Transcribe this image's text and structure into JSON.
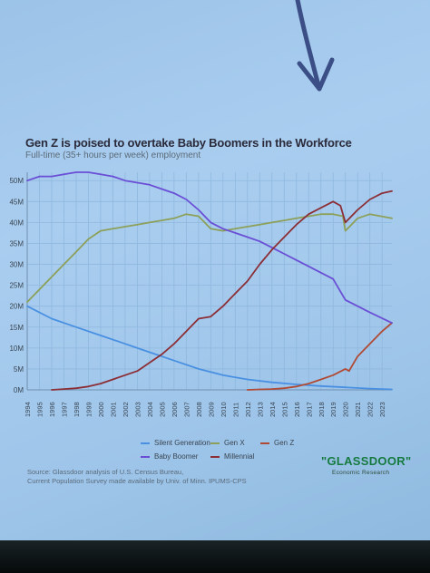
{
  "header": {
    "title": "Gen Z is poised to overtake Baby Boomers in the Workforce",
    "subtitle": "Full-time (35+ hours per week) employment"
  },
  "footer": {
    "source_line1": "Source: Glassdoor analysis of U.S. Census Bureau,",
    "source_line2": "Current Population Survey made available by Univ. of Minn. IPUMS-CPS",
    "brand": "\"GLASSDOOR\"",
    "brand_sub": "Economic Research"
  },
  "colors": {
    "silent": "#4a90e2",
    "gen_x": "#8ca05a",
    "gen_z": "#b04a34",
    "boomer": "#6a4fd6",
    "millennial": "#8c2e36",
    "grid": "#8fb8de",
    "axis_text": "#3a4552"
  },
  "chart_data": {
    "type": "line",
    "title": "Gen Z is poised to overtake Baby Boomers in the Workforce",
    "subtitle": "Full-time (35+ hours per week) employment",
    "xlabel": "",
    "ylabel": "",
    "ylim": [
      0,
      52
    ],
    "y_ticks": [
      "0M",
      "5M",
      "10M",
      "15M",
      "20M",
      "25M",
      "30M",
      "35M",
      "40M",
      "45M",
      "50M"
    ],
    "x_ticks": [
      "1994",
      "1995",
      "1996",
      "1997",
      "1998",
      "1999",
      "2000",
      "2001",
      "2002",
      "2003",
      "2004",
      "2005",
      "2006",
      "2007",
      "2008",
      "2009",
      "2010",
      "2011",
      "2012",
      "2013",
      "2014",
      "2015",
      "2016",
      "2017",
      "2018",
      "2019",
      "2020",
      "2021",
      "2022",
      "2023"
    ],
    "grid": true,
    "legend": [
      "Silent Generation",
      "Gen X",
      "Gen Z",
      "Baby Boomer",
      "Millennial"
    ],
    "series": [
      {
        "name": "Silent Generation",
        "color_key": "silent",
        "x": [
          1994,
          1996,
          1998,
          2000,
          2002,
          2004,
          2006,
          2008,
          2010,
          2012,
          2014,
          2016,
          2018,
          2020,
          2022,
          2023.8
        ],
        "values": [
          20,
          17,
          15,
          13,
          11,
          9,
          7,
          5,
          3.5,
          2.5,
          1.8,
          1.3,
          0.9,
          0.6,
          0.3,
          0.1
        ]
      },
      {
        "name": "Gen X",
        "color_key": "gen_x",
        "x": [
          1994,
          1995,
          1996,
          1997,
          1998,
          1999,
          2000,
          2001,
          2002,
          2003,
          2004,
          2005,
          2006,
          2007,
          2008,
          2009,
          2010,
          2011,
          2012,
          2013,
          2014,
          2015,
          2016,
          2017,
          2018,
          2019,
          2019.8,
          2020,
          2020.5,
          2021,
          2022,
          2023.8
        ],
        "values": [
          21,
          24,
          27,
          30,
          33,
          36,
          38,
          38.5,
          39,
          39.5,
          40,
          40.5,
          41,
          42,
          41.5,
          38.5,
          38,
          38.5,
          39,
          39.5,
          40,
          40.5,
          41,
          41.5,
          42,
          42,
          41.5,
          38,
          39.5,
          41,
          42,
          41
        ]
      },
      {
        "name": "Gen Z",
        "color_key": "gen_z",
        "x": [
          2012,
          2013,
          2014,
          2015,
          2016,
          2017,
          2018,
          2019,
          2020,
          2020.3,
          2021,
          2022,
          2023,
          2023.8
        ],
        "values": [
          0,
          0.1,
          0.2,
          0.4,
          0.8,
          1.5,
          2.5,
          3.5,
          5,
          4.5,
          8,
          11,
          14,
          16
        ]
      },
      {
        "name": "Baby Boomer",
        "color_key": "boomer",
        "x": [
          1994,
          1995,
          1996,
          1997,
          1998,
          1999,
          2000,
          2001,
          2002,
          2003,
          2004,
          2005,
          2006,
          2007,
          2008,
          2009,
          2010,
          2011,
          2012,
          2013,
          2014,
          2015,
          2016,
          2017,
          2018,
          2019,
          2020,
          2021,
          2022,
          2023.8
        ],
        "values": [
          50,
          51,
          51,
          51.5,
          52,
          52,
          51.5,
          51,
          50,
          49.5,
          49,
          48,
          47,
          45.5,
          43,
          40,
          38.5,
          37.5,
          36.5,
          35.5,
          34,
          32.5,
          31,
          29.5,
          28,
          26.5,
          21.5,
          20,
          18.5,
          16
        ]
      },
      {
        "name": "Millennial",
        "color_key": "millennial",
        "x": [
          1996,
          1997,
          1998,
          1999,
          2000,
          2001,
          2002,
          2003,
          2004,
          2005,
          2006,
          2007,
          2008,
          2009,
          2010,
          2011,
          2012,
          2013,
          2014,
          2015,
          2016,
          2017,
          2018,
          2019,
          2019.6,
          2020,
          2021,
          2022,
          2023,
          2023.8
        ],
        "values": [
          0,
          0.2,
          0.4,
          0.8,
          1.5,
          2.5,
          3.5,
          4.5,
          6.5,
          8.5,
          11,
          14,
          17,
          17.5,
          20,
          23,
          26,
          30,
          33.5,
          36.5,
          39.5,
          42,
          43.5,
          45,
          44,
          40,
          43,
          45.5,
          47,
          47.5
        ]
      }
    ]
  }
}
